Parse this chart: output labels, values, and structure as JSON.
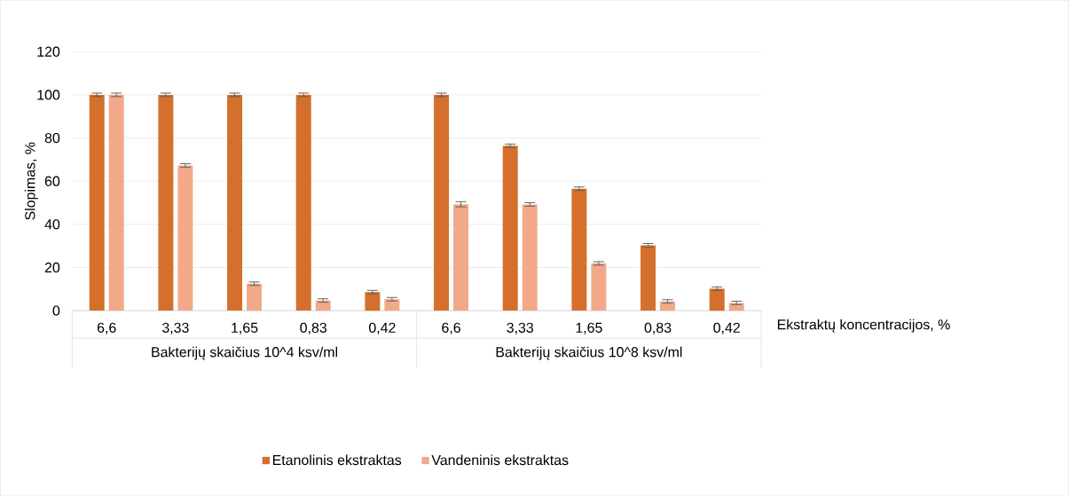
{
  "chart_data": {
    "type": "bar",
    "ylabel": "Slopimas, %",
    "xlabel": "Ekstraktų koncentracijos, %",
    "categories": [
      "6,6",
      "3,33",
      "1,65",
      "0,83",
      "0,42",
      "6,6",
      "3,33",
      "1,65",
      "0,83",
      "0,42"
    ],
    "annotations": [
      "Bakterijų skaičius 10^4 ksv/ml",
      "Bakterijų skaičius 10^8 ksv/ml"
    ],
    "series": [
      {
        "name": "Etanolinis ekstraktas",
        "color": "#d4702b",
        "values": [
          100,
          100,
          100,
          100,
          8.6,
          100,
          76.4,
          56.5,
          30.3,
          10.2
        ],
        "errors": [
          0.8,
          0.8,
          0.8,
          0.8,
          0.8,
          0.8,
          0.8,
          0.8,
          0.8,
          0.8
        ]
      },
      {
        "name": "Vandeninis ekstraktas",
        "color": "#f2a98a",
        "values": [
          100,
          67.3,
          12.5,
          4.7,
          5.3,
          49.3,
          49.2,
          21.9,
          4.3,
          3.6
        ],
        "errors": [
          0.8,
          0.8,
          0.8,
          0.8,
          0.8,
          1.2,
          0.8,
          0.8,
          0.8,
          0.8
        ]
      }
    ],
    "ylim": [
      0,
      120
    ],
    "yticks": [
      0,
      20,
      40,
      60,
      80,
      100,
      120
    ],
    "grid": "y",
    "legend": "bottom"
  }
}
